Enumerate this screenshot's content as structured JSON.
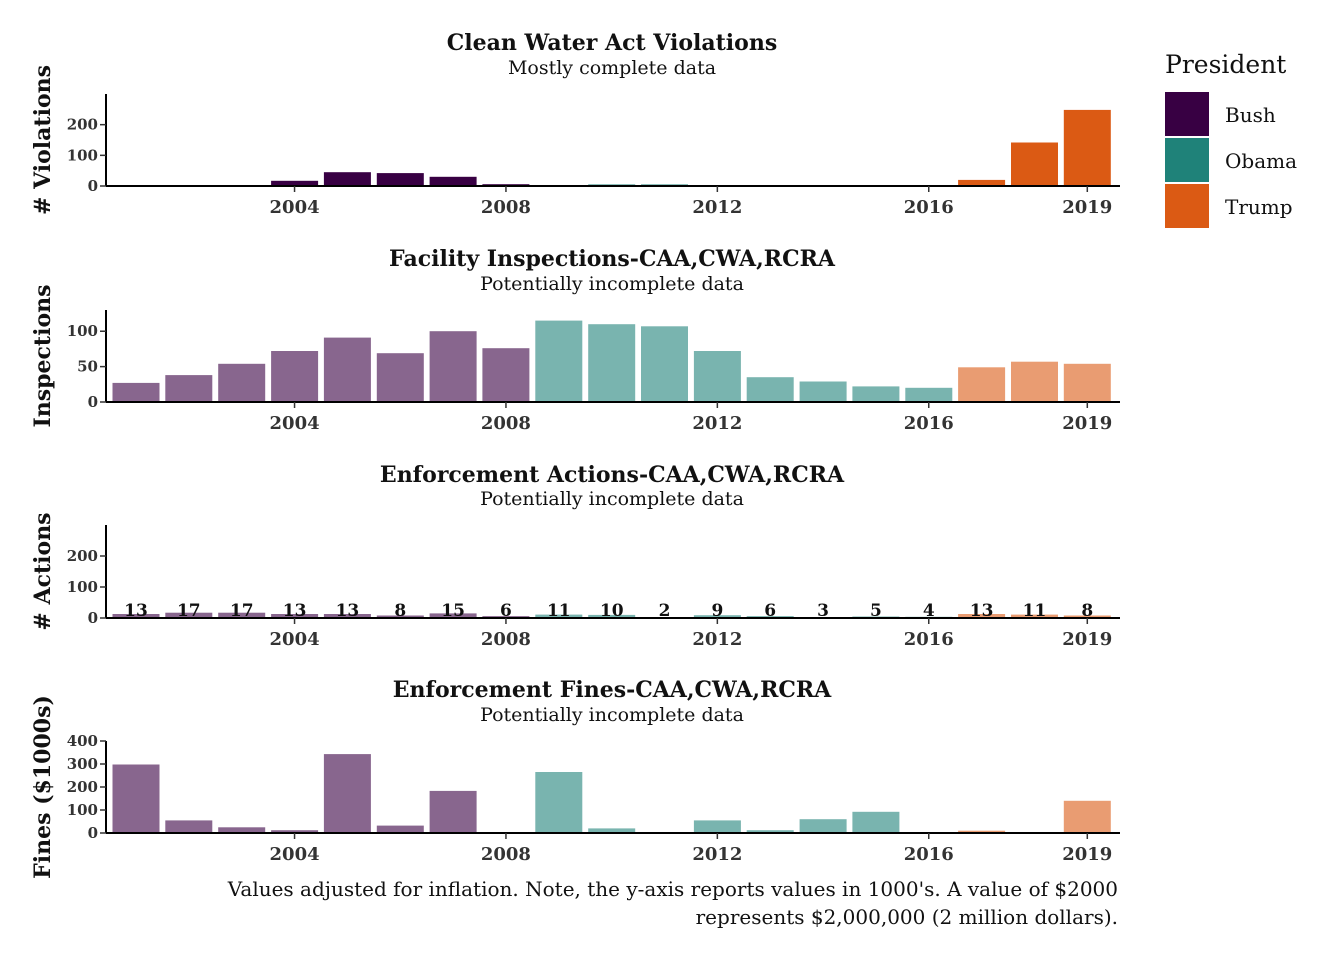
{
  "legend": {
    "title": "President",
    "items": [
      {
        "label": "Bush",
        "color": "#380043"
      },
      {
        "label": "Obama",
        "color": "#1f8279"
      },
      {
        "label": "Trump",
        "color": "#db5a14"
      }
    ]
  },
  "caption_lines": [
    "Values adjusted for inflation. Note, the y-axis reports values in 1000's. A value of $2000",
    "represents $2,000,000 (2 million dollars)."
  ],
  "chart_data": [
    {
      "type": "bar",
      "title": "Clean Water Act Violations",
      "subtitle": "Mostly complete data",
      "ylabel": "# Violations",
      "xlabel": "",
      "x": [
        2001,
        2002,
        2003,
        2004,
        2005,
        2006,
        2007,
        2008,
        2009,
        2010,
        2011,
        2012,
        2013,
        2014,
        2015,
        2016,
        2017,
        2018,
        2019
      ],
      "values": [
        0,
        0,
        2,
        17,
        45,
        42,
        30,
        6,
        0,
        5,
        5,
        1,
        0,
        0,
        0,
        0,
        20,
        142,
        248
      ],
      "president": [
        "Bush",
        "Bush",
        "Bush",
        "Bush",
        "Bush",
        "Bush",
        "Bush",
        "Bush",
        "Obama",
        "Obama",
        "Obama",
        "Obama",
        "Obama",
        "Obama",
        "Obama",
        "Obama",
        "Trump",
        "Trump",
        "Trump"
      ],
      "ylim": [
        0,
        300
      ],
      "yticks": [
        0,
        100,
        200
      ],
      "xticks": [
        "2004",
        "2008",
        "2012",
        "2016",
        "2019"
      ],
      "bar_opacity": 1.0,
      "show_labels": false
    },
    {
      "type": "bar",
      "title": "Facility Inspections-CAA,CWA,RCRA",
      "subtitle": "Potentially incomplete data",
      "ylabel": "Inspections",
      "xlabel": "",
      "x": [
        2001,
        2002,
        2003,
        2004,
        2005,
        2006,
        2007,
        2008,
        2009,
        2010,
        2011,
        2012,
        2013,
        2014,
        2015,
        2016,
        2017,
        2018,
        2019
      ],
      "values": [
        27,
        38,
        54,
        72,
        91,
        69,
        100,
        76,
        115,
        110,
        107,
        72,
        35,
        29,
        22,
        20,
        49,
        57,
        54
      ],
      "president": [
        "Bush",
        "Bush",
        "Bush",
        "Bush",
        "Bush",
        "Bush",
        "Bush",
        "Bush",
        "Obama",
        "Obama",
        "Obama",
        "Obama",
        "Obama",
        "Obama",
        "Obama",
        "Obama",
        "Trump",
        "Trump",
        "Trump"
      ],
      "ylim": [
        0,
        130
      ],
      "yticks": [
        0,
        50,
        100
      ],
      "xticks": [
        "2004",
        "2008",
        "2012",
        "2016",
        "2019"
      ],
      "bar_opacity": 0.6,
      "show_labels": false
    },
    {
      "type": "bar",
      "title": "Enforcement Actions-CAA,CWA,RCRA",
      "subtitle": "Potentially incomplete data",
      "ylabel": "# Actions",
      "xlabel": "",
      "x": [
        2001,
        2002,
        2003,
        2004,
        2005,
        2006,
        2007,
        2008,
        2009,
        2010,
        2011,
        2012,
        2013,
        2014,
        2015,
        2016,
        2017,
        2018,
        2019
      ],
      "values": [
        13,
        17,
        17,
        13,
        13,
        8,
        15,
        6,
        11,
        10,
        2,
        9,
        6,
        3,
        5,
        4,
        13,
        11,
        8
      ],
      "president": [
        "Bush",
        "Bush",
        "Bush",
        "Bush",
        "Bush",
        "Bush",
        "Bush",
        "Bush",
        "Obama",
        "Obama",
        "Obama",
        "Obama",
        "Obama",
        "Obama",
        "Obama",
        "Obama",
        "Trump",
        "Trump",
        "Trump"
      ],
      "labels": [
        "13",
        "17",
        "17",
        "13",
        "13",
        "8",
        "15",
        "6",
        "11",
        "10",
        "2",
        "9",
        "6",
        "3",
        "5",
        "4",
        "13",
        "11",
        "8"
      ],
      "ylim": [
        0,
        300
      ],
      "yticks": [
        0,
        100,
        200
      ],
      "xticks": [
        "2004",
        "2008",
        "2012",
        "2016",
        "2019"
      ],
      "bar_opacity": 0.6,
      "show_labels": true
    },
    {
      "type": "bar",
      "title": "Enforcement Fines-CAA,CWA,RCRA",
      "subtitle": "Potentially incomplete data",
      "ylabel": "Fines ($1000s)",
      "xlabel": "",
      "x": [
        2001,
        2002,
        2003,
        2004,
        2005,
        2006,
        2007,
        2008,
        2009,
        2010,
        2011,
        2012,
        2013,
        2014,
        2015,
        2016,
        2017,
        2018,
        2019
      ],
      "values": [
        298,
        55,
        25,
        12,
        343,
        32,
        183,
        0,
        265,
        20,
        0,
        55,
        12,
        60,
        92,
        0,
        10,
        0,
        140
      ],
      "president": [
        "Bush",
        "Bush",
        "Bush",
        "Bush",
        "Bush",
        "Bush",
        "Bush",
        "Bush",
        "Obama",
        "Obama",
        "Obama",
        "Obama",
        "Obama",
        "Obama",
        "Obama",
        "Obama",
        "Trump",
        "Trump",
        "Trump"
      ],
      "ylim": [
        0,
        400
      ],
      "yticks": [
        0,
        100,
        200,
        300,
        400
      ],
      "xticks": [
        "2004",
        "2008",
        "2012",
        "2016",
        "2019"
      ],
      "bar_opacity": 0.6,
      "show_labels": false
    }
  ]
}
